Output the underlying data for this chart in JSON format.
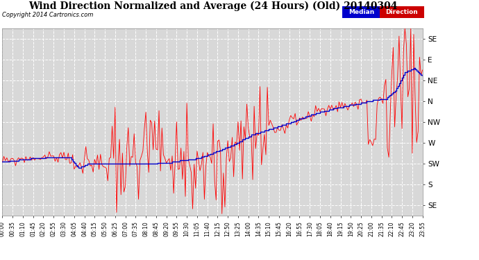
{
  "title": "Wind Direction Normalized and Average (24 Hours) (Old) 20140304",
  "copyright": "Copyright 2014 Cartronics.com",
  "background_color": "#ffffff",
  "plot_bg_color": "#d8d8d8",
  "grid_color": "#ffffff",
  "ytick_labels": [
    "SE",
    "E",
    "NE",
    "N",
    "NW",
    "W",
    "SW",
    "S",
    "SE"
  ],
  "ytick_values": [
    9,
    8,
    7,
    6,
    5,
    4,
    3,
    2,
    1
  ],
  "ylim": [
    0.5,
    9.5
  ],
  "legend_median_bg": "#0000cc",
  "legend_direction_bg": "#cc0000",
  "line_red_color": "#ff0000",
  "line_blue_color": "#0000cc",
  "tick_label_fontsize": 5.5,
  "title_fontsize": 10,
  "copyright_fontsize": 6,
  "n_points": 288,
  "tick_every_n": 7,
  "blue_keypoints_t": [
    0,
    10,
    25,
    45,
    52,
    58,
    68,
    80,
    95,
    115,
    135,
    150,
    160,
    170,
    183,
    197,
    212,
    228,
    242,
    255,
    262,
    268,
    275,
    281,
    287
  ],
  "blue_keypoints_v": [
    3.1,
    3.2,
    3.3,
    3.35,
    2.8,
    3.0,
    3.05,
    2.95,
    3.0,
    3.1,
    3.3,
    3.7,
    4.0,
    4.4,
    4.7,
    5.0,
    5.4,
    5.7,
    5.9,
    6.1,
    6.15,
    6.5,
    7.4,
    7.6,
    7.2
  ]
}
